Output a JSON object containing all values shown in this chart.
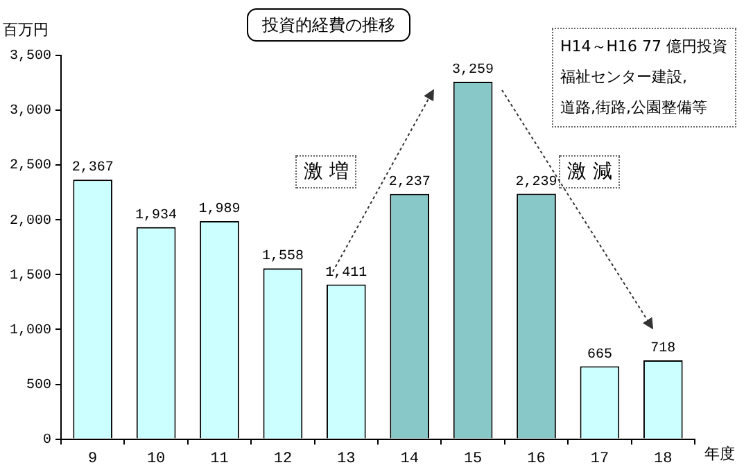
{
  "chart_data": {
    "type": "bar",
    "title": "投資的経費の推移",
    "ylabel": "百万円",
    "xlabel": "年度",
    "categories": [
      "9",
      "10",
      "11",
      "12",
      "13",
      "14",
      "15",
      "16",
      "17",
      "18"
    ],
    "values": [
      2367,
      1934,
      1989,
      1558,
      1411,
      2237,
      3259,
      2239,
      665,
      718
    ],
    "colors": [
      "#ccffff",
      "#ccffff",
      "#ccffff",
      "#ccffff",
      "#ccffff",
      "#88c8c8",
      "#88c8c8",
      "#88c8c8",
      "#ccffff",
      "#ccffff"
    ],
    "value_labels": [
      "2,367",
      "1,934",
      "1,989",
      "1,558",
      "1,411",
      "2,237",
      "3,259",
      "2,239",
      "665",
      "718"
    ],
    "ylim": [
      0,
      3500
    ],
    "yticks": [
      0,
      {
        "value": 500,
        "label": "500"
      },
      {
        "value": 1000,
        "label": "1,000"
      },
      {
        "value": 1500,
        "label": "1,500"
      },
      {
        "value": 2000,
        "label": "2,000"
      },
      {
        "value": 2500,
        "label": "2,500"
      },
      {
        "value": 3000,
        "label": "3,000"
      },
      {
        "value": 3500,
        "label": "3,500"
      }
    ],
    "grid": false,
    "legend": false,
    "annotations": [
      "激 増",
      "激 減",
      "H14～H16 77 億円投資",
      "福祉センター建設,",
      "道路,街路,公園整備等"
    ]
  }
}
